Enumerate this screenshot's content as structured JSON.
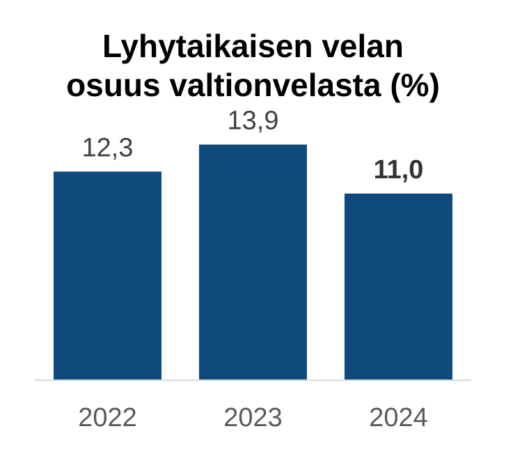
{
  "chart_data": {
    "type": "bar",
    "title_lines": [
      "Lyhytaikaisen velan",
      "osuus valtionvelasta (%)"
    ],
    "categories": [
      "2022",
      "2023",
      "2024"
    ],
    "values": [
      12.3,
      13.9,
      11.0
    ],
    "value_labels": [
      "12,3",
      "13,9",
      "11,0"
    ],
    "emphasized_index": 2,
    "ylim": [
      0,
      14.5
    ],
    "grid": false,
    "legend": "none",
    "colors": {
      "bar": "#0F4A7C",
      "baseline": "#D9D9D9",
      "value_label": "#404040",
      "category_label": "#595959"
    }
  }
}
